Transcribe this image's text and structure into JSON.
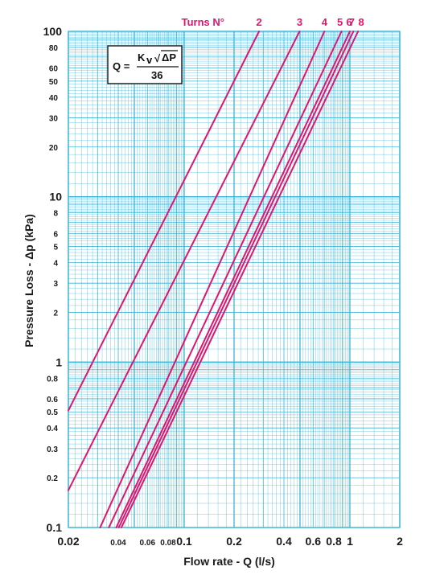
{
  "chart_data": {
    "type": "line",
    "scale": "log-log",
    "xlabel": "Flow rate - Q (l/s)",
    "ylabel": "Pressure Loss  - Δp (kPa)",
    "xlim": [
      0.02,
      2
    ],
    "ylim": [
      0.1,
      100
    ],
    "grid": true,
    "x_ticks_major": [
      {
        "v": 0.02,
        "t": "0.02"
      },
      {
        "v": 0.1,
        "t": "0.1"
      },
      {
        "v": 0.2,
        "t": "0.2"
      },
      {
        "v": 0.4,
        "t": "0.4"
      },
      {
        "v": 0.6,
        "t": "0.6"
      },
      {
        "v": 0.8,
        "t": "0.8"
      },
      {
        "v": 1,
        "t": "1"
      },
      {
        "v": 2,
        "t": "2"
      }
    ],
    "x_ticks_minor": [
      {
        "v": 0.04,
        "t": "0.04"
      },
      {
        "v": 0.06,
        "t": "0.06"
      },
      {
        "v": 0.08,
        "t": "0.08"
      }
    ],
    "y_ticks_major": [
      {
        "v": 100,
        "t": "100"
      },
      {
        "v": 10,
        "t": "10"
      },
      {
        "v": 1,
        "t": "1"
      },
      {
        "v": 0.1,
        "t": "0.1"
      }
    ],
    "y_ticks_minor": [
      {
        "v": 80,
        "t": "80"
      },
      {
        "v": 60,
        "t": "60"
      },
      {
        "v": 50,
        "t": "50"
      },
      {
        "v": 40,
        "t": "40"
      },
      {
        "v": 30,
        "t": "30"
      },
      {
        "v": 20,
        "t": "20"
      },
      {
        "v": 8,
        "t": "8"
      },
      {
        "v": 6,
        "t": "6"
      },
      {
        "v": 5,
        "t": "5"
      },
      {
        "v": 4,
        "t": "4"
      },
      {
        "v": 3,
        "t": "3"
      },
      {
        "v": 2,
        "t": "2"
      },
      {
        "v": 0.8,
        "t": "0.8"
      },
      {
        "v": 0.6,
        "t": "0.6"
      },
      {
        "v": 0.5,
        "t": "0.5"
      },
      {
        "v": 0.4,
        "t": "0.4"
      },
      {
        "v": 0.3,
        "t": "0.3"
      },
      {
        "v": 0.2,
        "t": "0.2"
      }
    ],
    "turns_title": "Turns N°",
    "series": [
      {
        "name": "2",
        "x": [
          0.02,
          0.283
        ],
        "y": [
          0.51,
          100
        ]
      },
      {
        "name": "3",
        "x": [
          0.02,
          0.497
        ],
        "y": [
          0.168,
          100
        ]
      },
      {
        "name": "4",
        "x": [
          0.0311,
          0.702
        ],
        "y": [
          0.1,
          100
        ]
      },
      {
        "name": "5",
        "x": [
          0.0351,
          0.89
        ],
        "y": [
          0.1,
          100
        ]
      },
      {
        "name": "6",
        "x": [
          0.0389,
          1.0
        ],
        "y": [
          0.1,
          100
        ]
      },
      {
        "name": "7",
        "x": [
          0.0403,
          1.05
        ],
        "y": [
          0.1,
          100
        ]
      },
      {
        "name": "8",
        "x": [
          0.0418,
          1.12
        ],
        "y": [
          0.1,
          100
        ]
      }
    ],
    "formula": {
      "lhs": "Q =",
      "numerator_k": "K",
      "numerator_sub": "v",
      "root": "√",
      "numerator_p": "ΔP",
      "denominator": "36"
    }
  },
  "colors": {
    "background": "#ffffff",
    "grid": "#3bb4d8",
    "series": "#e0156e",
    "text": "#1a1a1a"
  }
}
